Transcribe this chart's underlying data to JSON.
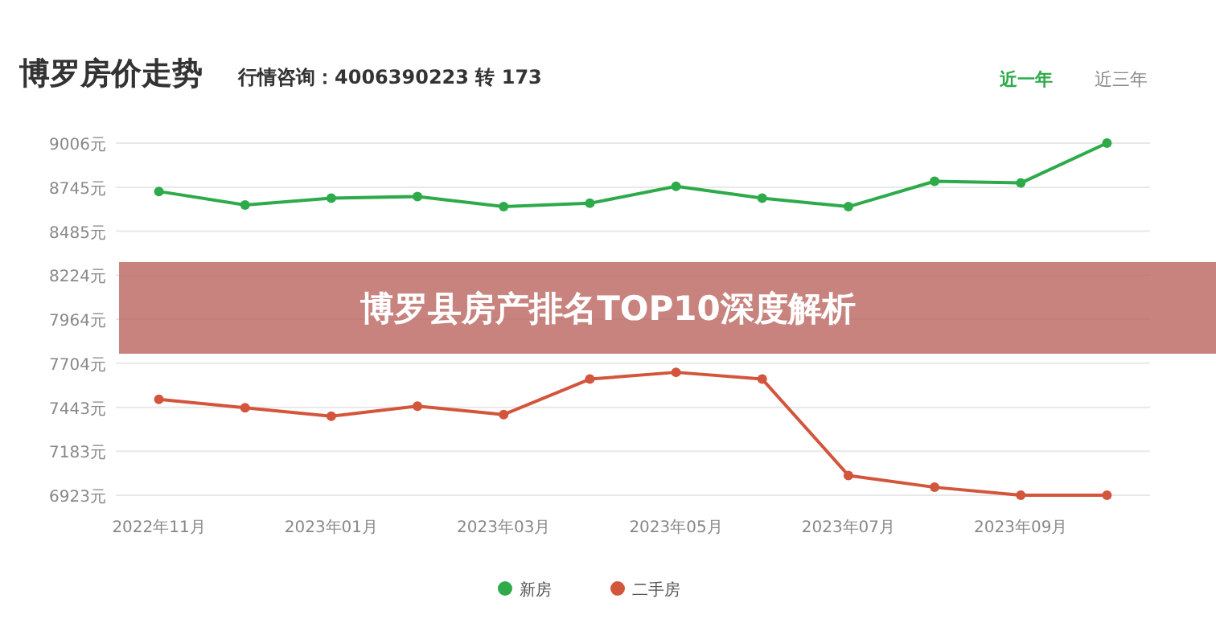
{
  "chart_data": {
    "type": "line",
    "title": "博罗房价走势",
    "subtitle": "行情咨询：4006390223 转 173",
    "annotations": [
      "博罗县房产排名TOP10深度解析",
      "近一年",
      "近三年"
    ],
    "categories": [
      "2022年11月",
      null,
      "2023年01月",
      null,
      "2023年03月",
      null,
      "2023年05月",
      null,
      "2023年07月",
      null,
      "2023年09月",
      null
    ],
    "series": [
      {
        "name": "新房",
        "color": "#2eaa4a",
        "values": [
          8720,
          8640,
          8680,
          8690,
          8630,
          8650,
          8750,
          8680,
          8630,
          8780,
          8770,
          9006
        ]
      },
      {
        "name": "二手房",
        "color": "#d2553c",
        "values": [
          7490,
          7440,
          7390,
          7450,
          7400,
          7610,
          7650,
          7610,
          7040,
          6970,
          6923,
          6923
        ]
      }
    ],
    "ylim": [
      6923,
      9006
    ],
    "yticks": [
      {
        "value": 6923,
        "label": "6923元"
      },
      {
        "value": 7183,
        "label": "7183元"
      },
      {
        "value": 7443,
        "label": "7443元"
      },
      {
        "value": 7704,
        "label": "7704元"
      },
      {
        "value": 7964,
        "label": "7964元"
      },
      {
        "value": 8224,
        "label": "8224元"
      },
      {
        "value": 8485,
        "label": "8485元"
      },
      {
        "value": 8745,
        "label": "8745元"
      },
      {
        "value": 9006,
        "label": "9006元"
      }
    ],
    "grid": "y",
    "legend": "bottom",
    "marker": "circle",
    "line_style": "solid"
  }
}
